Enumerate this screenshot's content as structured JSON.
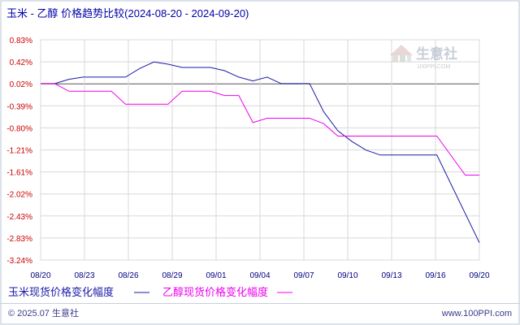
{
  "chart_data": {
    "type": "line",
    "title": "玉米 - 乙醇 价格趋势比较(2024-08-20 - 2024-09-20)",
    "x_ticks": [
      "08/20",
      "08/23",
      "08/26",
      "08/29",
      "09/01",
      "09/04",
      "09/07",
      "09/10",
      "09/13",
      "09/16",
      "09/20"
    ],
    "y_ticks": [
      "0.83%",
      "0.42%",
      "0.02%",
      "-0.39%",
      "-0.80%",
      "-1.21%",
      "-1.61%",
      "-2.02%",
      "-2.43%",
      "-2.83%",
      "-3.24%"
    ],
    "ylim": [
      -3.24,
      0.83
    ],
    "xlim": [
      "2024-08-20",
      "2024-09-20"
    ],
    "grid": true,
    "legend_placement": "bottom-left",
    "series": [
      {
        "name": "玉米现货价格变化幅度",
        "color": "#1a1aa6",
        "points": [
          [
            "2024-08-20",
            0.02
          ],
          [
            "2024-08-21",
            0.02
          ],
          [
            "2024-08-22",
            0.1
          ],
          [
            "2024-08-23",
            0.14
          ],
          [
            "2024-08-24",
            0.14
          ],
          [
            "2024-08-25",
            0.14
          ],
          [
            "2024-08-26",
            0.14
          ],
          [
            "2024-08-27",
            0.3
          ],
          [
            "2024-08-28",
            0.42
          ],
          [
            "2024-08-29",
            0.38
          ],
          [
            "2024-08-30",
            0.32
          ],
          [
            "2024-08-31",
            0.32
          ],
          [
            "2024-09-01",
            0.32
          ],
          [
            "2024-09-02",
            0.26
          ],
          [
            "2024-09-03",
            0.14
          ],
          [
            "2024-09-04",
            0.07
          ],
          [
            "2024-09-05",
            0.14
          ],
          [
            "2024-09-06",
            0.02
          ],
          [
            "2024-09-07",
            0.02
          ],
          [
            "2024-09-08",
            0.02
          ],
          [
            "2024-09-09",
            -0.5
          ],
          [
            "2024-09-10",
            -0.85
          ],
          [
            "2024-09-11",
            -1.05
          ],
          [
            "2024-09-12",
            -1.21
          ],
          [
            "2024-09-13",
            -1.3
          ],
          [
            "2024-09-14",
            -1.3
          ],
          [
            "2024-09-15",
            -1.3
          ],
          [
            "2024-09-16",
            -1.3
          ],
          [
            "2024-09-17",
            -1.3
          ],
          [
            "2024-09-20",
            -2.92
          ]
        ]
      },
      {
        "name": "乙醇现货价格变化幅度",
        "color": "#ee00ee",
        "points": [
          [
            "2024-08-20",
            0.02
          ],
          [
            "2024-08-21",
            0.02
          ],
          [
            "2024-08-22",
            -0.12
          ],
          [
            "2024-08-23",
            -0.12
          ],
          [
            "2024-08-24",
            -0.12
          ],
          [
            "2024-08-25",
            -0.12
          ],
          [
            "2024-08-26",
            -0.36
          ],
          [
            "2024-08-27",
            -0.36
          ],
          [
            "2024-08-28",
            -0.36
          ],
          [
            "2024-08-29",
            -0.36
          ],
          [
            "2024-08-30",
            -0.12
          ],
          [
            "2024-08-31",
            -0.12
          ],
          [
            "2024-09-01",
            -0.12
          ],
          [
            "2024-09-02",
            -0.2
          ],
          [
            "2024-09-03",
            -0.2
          ],
          [
            "2024-09-04",
            -0.7
          ],
          [
            "2024-09-05",
            -0.62
          ],
          [
            "2024-09-06",
            -0.62
          ],
          [
            "2024-09-07",
            -0.62
          ],
          [
            "2024-09-08",
            -0.62
          ],
          [
            "2024-09-09",
            -0.72
          ],
          [
            "2024-09-10",
            -0.95
          ],
          [
            "2024-09-11",
            -0.95
          ],
          [
            "2024-09-12",
            -0.95
          ],
          [
            "2024-09-13",
            -0.95
          ],
          [
            "2024-09-14",
            -0.95
          ],
          [
            "2024-09-15",
            -0.95
          ],
          [
            "2024-09-16",
            -0.95
          ],
          [
            "2024-09-17",
            -0.95
          ],
          [
            "2024-09-19",
            -1.67
          ],
          [
            "2024-09-20",
            -1.67
          ]
        ]
      }
    ]
  },
  "watermark": {
    "name": "生意社",
    "url": "100PPI.COM"
  },
  "footer": {
    "copyright": "© 2025.07 生意社",
    "site": "www.100PPI.com"
  }
}
